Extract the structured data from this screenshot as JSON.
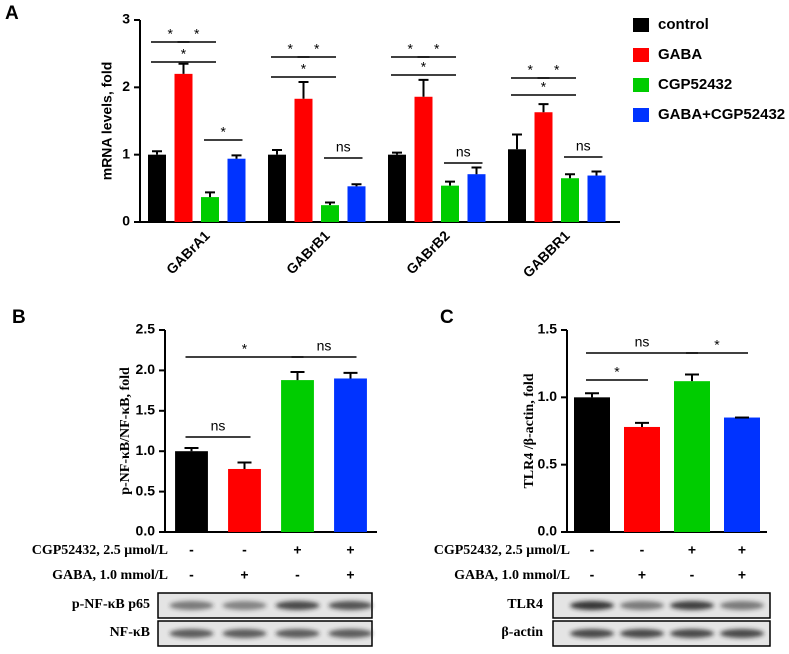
{
  "chart_data": [
    {
      "type": "bar",
      "panel_label": "A",
      "ylabel": "mRNA levels, fold",
      "categories": [
        "GABrA1",
        "GABrB1",
        "GABrB2",
        "GABBR1"
      ],
      "series": [
        {
          "name": "control",
          "color": "#000000",
          "values": [
            1.0,
            1.0,
            1.0,
            1.08
          ],
          "errors": [
            0.05,
            0.07,
            0.03,
            0.22
          ]
        },
        {
          "name": "GABA",
          "color": "#ff0000",
          "values": [
            2.2,
            1.83,
            1.86,
            1.63
          ],
          "errors": [
            0.15,
            0.25,
            0.25,
            0.12
          ]
        },
        {
          "name": "CGP52432",
          "color": "#00cc00",
          "values": [
            0.37,
            0.25,
            0.54,
            0.65
          ],
          "errors": [
            0.07,
            0.04,
            0.06,
            0.06
          ]
        },
        {
          "name": "GABA+CGP52432",
          "color": "#0033ff",
          "values": [
            0.94,
            0.53,
            0.71,
            0.69
          ],
          "errors": [
            0.05,
            0.03,
            0.1,
            0.06
          ]
        }
      ],
      "ylim": [
        0,
        3
      ],
      "yticks": [
        0,
        1,
        2,
        3
      ],
      "legend": "upper right",
      "annotations": [
        "*",
        "*",
        "*",
        "*",
        "*",
        "*",
        "*",
        "ns",
        "*",
        "*",
        "*",
        "ns",
        "*",
        "*",
        "*",
        "ns"
      ]
    },
    {
      "type": "bar",
      "panel_label": "B",
      "ylabel": "p-NF-κB/NF-κB, fold",
      "values": [
        1.0,
        0.78,
        1.88,
        1.9
      ],
      "errors": [
        0.04,
        0.08,
        0.1,
        0.07
      ],
      "colors": [
        "#000000",
        "#ff0000",
        "#00cc00",
        "#0033ff"
      ],
      "ylim": [
        0,
        2.5
      ],
      "yticks": [
        {
          "value": 0,
          "label": "0.0"
        },
        0.5,
        {
          "value": 1,
          "label": "1.0"
        },
        1.5,
        {
          "value": 2,
          "label": "2.0"
        },
        2.5
      ],
      "annotations": [
        "ns",
        "*",
        "ns"
      ],
      "treatments": [
        {
          "label": "CGP52432, 2.5 μmol/L",
          "values": [
            "-",
            "-",
            "+",
            "+"
          ]
        },
        {
          "label": "GABA, 1.0 mmol/L",
          "values": [
            "-",
            "+",
            "-",
            "+"
          ]
        }
      ],
      "blots": [
        "p-NF-κB p65",
        "NF-κB"
      ]
    },
    {
      "type": "bar",
      "panel_label": "C",
      "ylabel": "TLR4 /β-actin, fold",
      "values": [
        1.0,
        0.78,
        1.12,
        0.85
      ],
      "errors": [
        0.03,
        0.03,
        0.05,
        0
      ],
      "colors": [
        "#000000",
        "#ff0000",
        "#00cc00",
        "#0033ff"
      ],
      "ylim": [
        0,
        1.5
      ],
      "yticks": [
        {
          "value": 0,
          "label": "0.0"
        },
        0.5,
        {
          "value": 1,
          "label": "1.0"
        },
        1.5
      ],
      "annotations": [
        "*",
        "ns",
        "*"
      ],
      "treatments": [
        {
          "label": "CGP52432, 2.5 μmol/L",
          "values": [
            "-",
            "-",
            "+",
            "+"
          ]
        },
        {
          "label": "GABA, 1.0 mmol/L",
          "values": [
            "-",
            "+",
            "-",
            "+"
          ]
        }
      ],
      "blots": [
        "TLR4",
        "β-actin"
      ]
    }
  ]
}
